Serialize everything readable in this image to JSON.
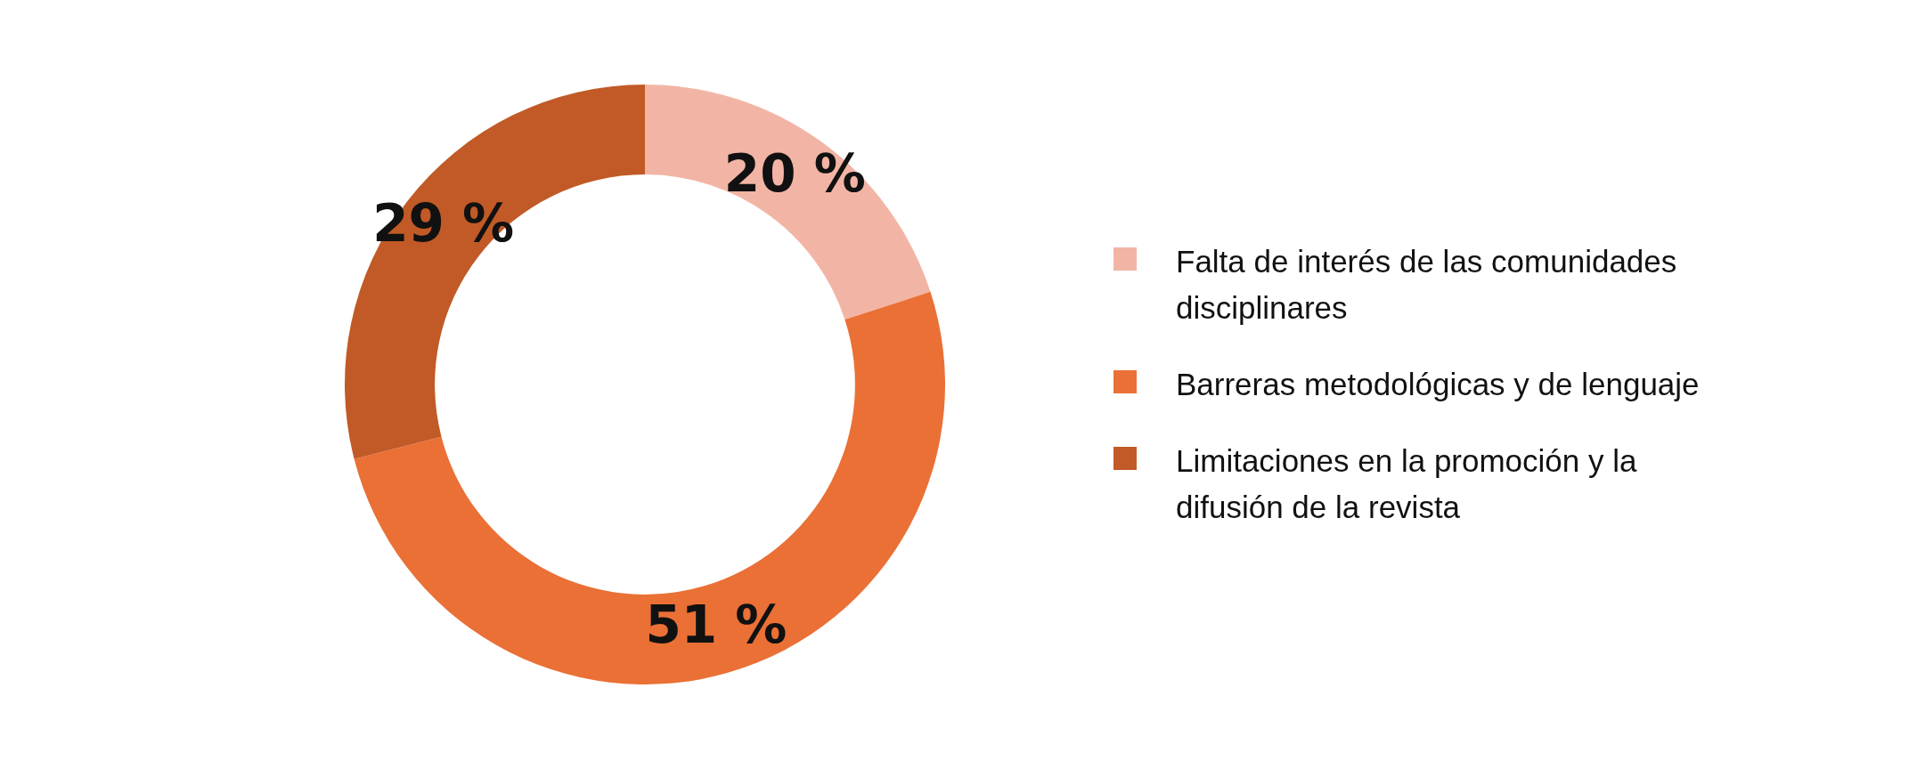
{
  "chart_data": {
    "type": "donut",
    "categories": [
      "Falta de interés de las comunidades disciplinares",
      "Barreras metodológicas y de lenguaje",
      "Limitaciones en la promoción y la difusión de la revista"
    ],
    "values": [
      20,
      51,
      29
    ],
    "colors": [
      "#f2b5a5",
      "#ea7036",
      "#c15a26"
    ],
    "value_labels": [
      "20 %",
      "51 %",
      "29 %"
    ],
    "legend": "right"
  }
}
